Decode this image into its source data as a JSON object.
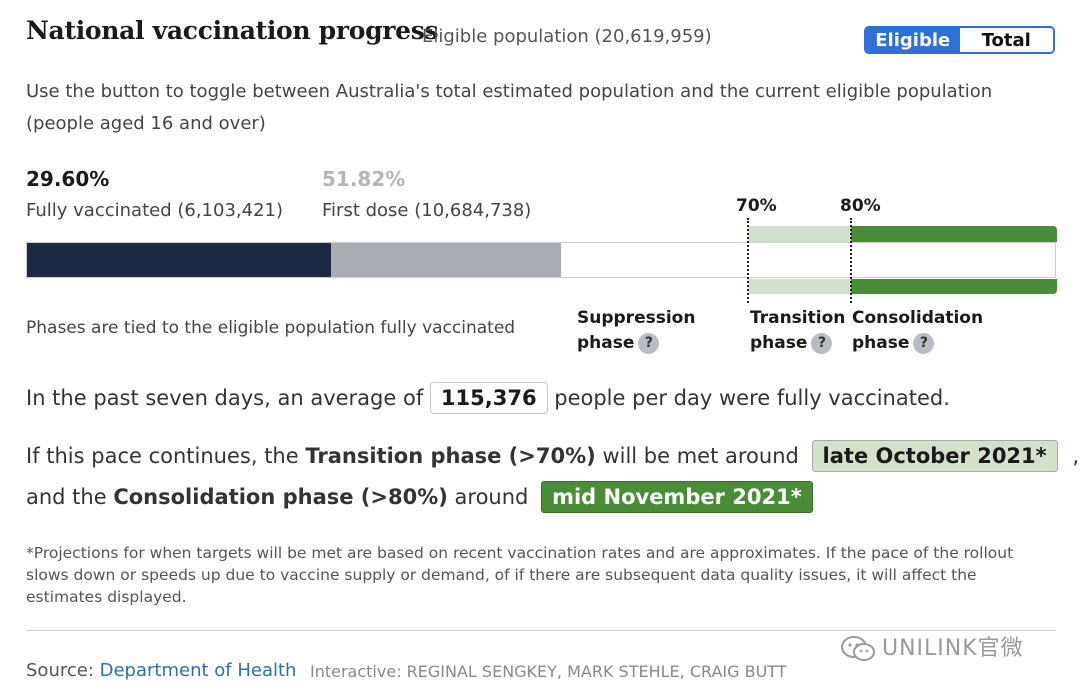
{
  "header": {
    "title": "National vaccination progress",
    "subtitle": "Eligible population (20,619,959)",
    "toggle": {
      "eligible_label": "Eligible",
      "total_label": "Total",
      "selected": "Eligible"
    },
    "description": "Use the button to toggle between Australia's total estimated population and the current eligible population (people aged 16 and over)"
  },
  "stats": {
    "fully": {
      "percent": "29.60%",
      "label": "Fully vaccinated (6,103,421)",
      "fraction": 0.296
    },
    "first": {
      "percent": "51.82%",
      "label": "First dose (10,684,738)",
      "fraction": 0.5182
    }
  },
  "thresholds": {
    "transition_label": "70%",
    "consolidation_label": "80%",
    "transition_fraction": 0.7,
    "consolidation_fraction": 0.8
  },
  "phases": {
    "note": "Phases are tied to the eligible population fully vaccinated",
    "suppression": {
      "line1": "Suppression",
      "line2": "phase"
    },
    "transition": {
      "line1": "Transition",
      "line2": "phase"
    },
    "consolidation": {
      "line1": "Consolidation",
      "line2": "phase"
    },
    "help_glyph": "?"
  },
  "average": {
    "prefix": "In the past seven days, an average of",
    "value": "115,376",
    "suffix": "people per day were fully vaccinated."
  },
  "projection": {
    "line1_prefix": "If this pace continues, the",
    "line1_bold": "Transition phase (>70%)",
    "line1_mid": "will be met around",
    "transition_date": "late October 2021*",
    "line1_end": ",",
    "line2_prefix": "and the",
    "line2_bold": "Consolidation phase (>80%)",
    "line2_mid": "around",
    "consolidation_date": "mid November 2021*"
  },
  "footnote": "*Projections for when targets will be met are based on recent vaccination rates and are approximates. If the pace of the rollout slows down or speeds up due to vaccine supply or demand, of if there are subsequent data quality issues, it will affect the estimates displayed.",
  "footer": {
    "source_prefix": "Source:",
    "source_link": "Department of Health",
    "credits": "Interactive: REGINAL SENGKEY, MARK STEHLE, CRAIG BUTT",
    "watermark": "UNILINK官微"
  },
  "colors": {
    "fully": "#1e2a44",
    "first": "#a9acb3",
    "transition": "#d2e1cb",
    "consolidation": "#4a8c37",
    "toggle_active": "#2f6fd6",
    "link": "#2f6fa8"
  },
  "icons": {
    "help": "question-circle-icon",
    "watermark": "wechat-icon"
  }
}
